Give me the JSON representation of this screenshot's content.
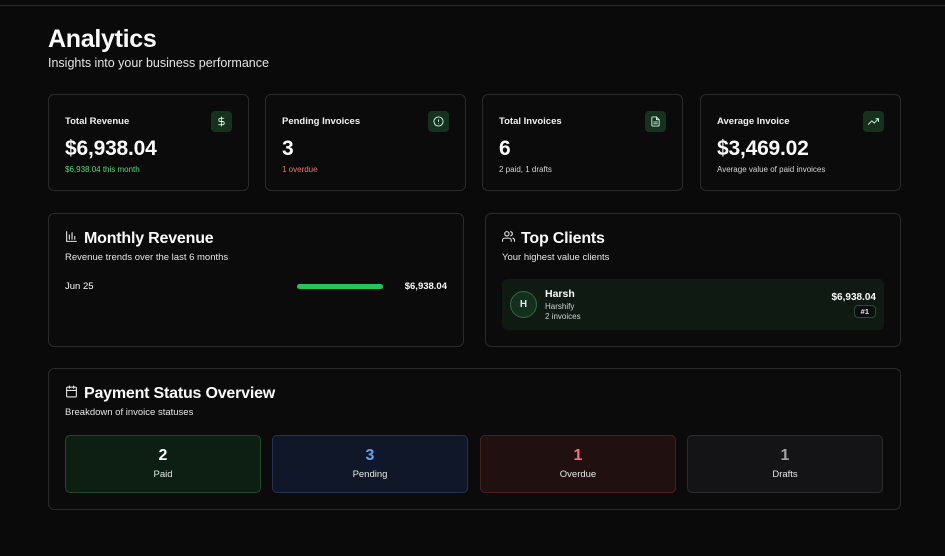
{
  "header": {
    "title": "Analytics",
    "subtitle": "Insights into your business performance"
  },
  "stats": [
    {
      "label": "Total Revenue",
      "value": "$6,938.04",
      "note": "$6,938.04 this month",
      "icon": "dollar-icon",
      "note_color": "#4ade80"
    },
    {
      "label": "Pending Invoices",
      "value": "3",
      "note": "1 overdue",
      "icon": "alert-circle-icon",
      "note_color": "#f87171"
    },
    {
      "label": "Total Invoices",
      "value": "6",
      "note": "2 paid, 1 drafts",
      "icon": "file-text-icon"
    },
    {
      "label": "Average Invoice",
      "value": "$3,469.02",
      "note": "Average value of paid invoices",
      "icon": "trending-up-icon"
    }
  ],
  "monthly_revenue": {
    "title": "Monthly Revenue",
    "subtitle": "Revenue trends over the last 6 months",
    "rows": [
      {
        "month": "Jun 25",
        "value": "$6,938.04",
        "bar_fraction": 1.0
      }
    ]
  },
  "top_clients": {
    "title": "Top Clients",
    "subtitle": "Your highest value clients",
    "clients": [
      {
        "initial": "H",
        "name": "Harsh",
        "company": "Harshify",
        "invoices": "2 invoices",
        "total": "$6,938.04",
        "rank": "#1"
      }
    ]
  },
  "payment_status": {
    "title": "Payment Status Overview",
    "subtitle": "Breakdown of invoice statuses",
    "items": [
      {
        "value": "2",
        "label": "Paid",
        "color": "#ffffff"
      },
      {
        "value": "3",
        "label": "Pending",
        "color": "#60a5fa"
      },
      {
        "value": "1",
        "label": "Overdue",
        "color": "#f87171"
      },
      {
        "value": "1",
        "label": "Drafts",
        "color": "#a3a3a3"
      }
    ]
  }
}
